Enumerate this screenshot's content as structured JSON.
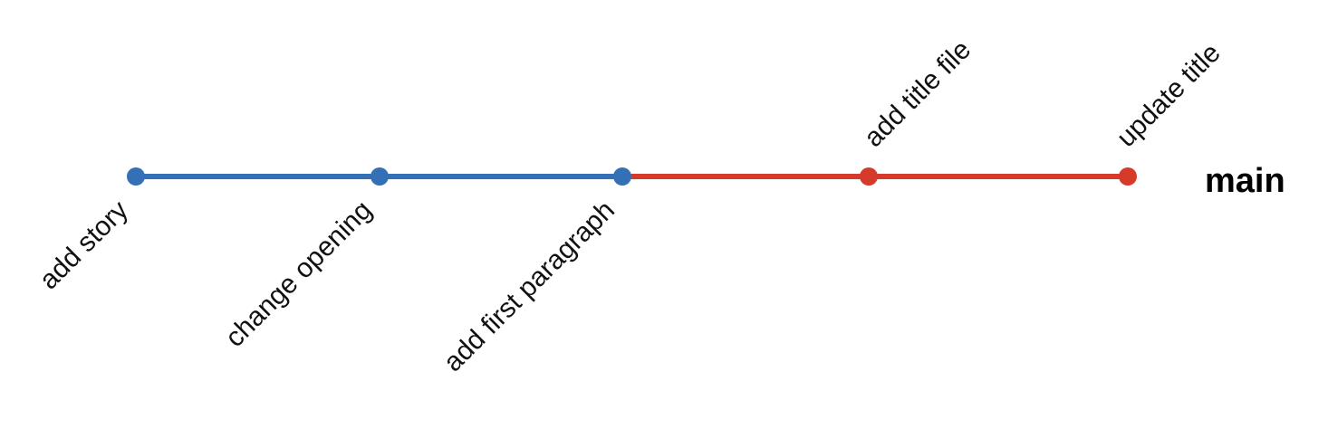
{
  "branch": {
    "name": "main"
  },
  "colors": {
    "original": "#3370b5",
    "new": "#d63a2b",
    "text": "#111111"
  },
  "commits": [
    {
      "message": "add story",
      "color": "#3370b5"
    },
    {
      "message": "change opening",
      "color": "#3370b5"
    },
    {
      "message": "add first paragraph",
      "color": "#3370b5"
    },
    {
      "message": "add title file",
      "color": "#d63a2b"
    },
    {
      "message": "update title",
      "color": "#d63a2b"
    }
  ]
}
